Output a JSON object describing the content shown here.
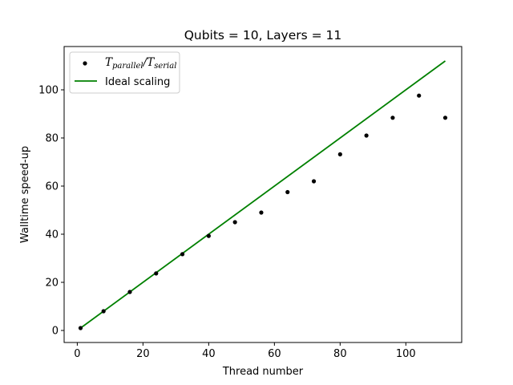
{
  "chart_data": {
    "type": "scatter",
    "title": "Qubits = 10, Layers = 11",
    "xlabel": "Thread number",
    "ylabel": "Walltime speed-up",
    "xlim": [
      -4,
      117
    ],
    "ylim": [
      -5,
      118
    ],
    "xticks": [
      0,
      20,
      40,
      60,
      80,
      100
    ],
    "yticks": [
      0,
      20,
      40,
      60,
      80,
      100
    ],
    "grid": false,
    "legend_position": "top-left",
    "series": [
      {
        "name": "T_parallel/T_serial",
        "legend": {
          "main": "T",
          "sub1": "parallel",
          "slash": "/",
          "main2": "T",
          "sub2": "serial"
        },
        "kind": "scatter",
        "color": "#000000",
        "x": [
          1,
          8,
          16,
          24,
          32,
          40,
          48,
          56,
          64,
          72,
          80,
          88,
          96,
          104,
          112
        ],
        "y": [
          1,
          8,
          16,
          23.7,
          31.7,
          39.3,
          45,
          49,
          57.5,
          62,
          73.2,
          81,
          88.4,
          97.6,
          88.4
        ]
      },
      {
        "name": "Ideal scaling",
        "kind": "line",
        "color": "#008000",
        "x": [
          1,
          112
        ],
        "y": [
          1,
          112
        ]
      }
    ]
  }
}
